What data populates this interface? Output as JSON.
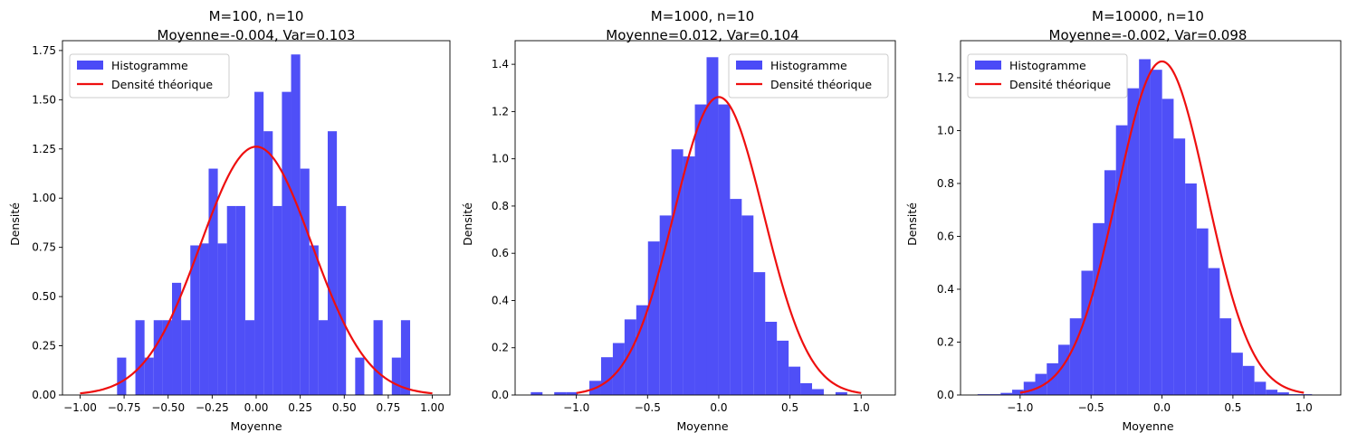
{
  "colors": {
    "hist": "#4b4bf7",
    "curve": "#ee0f0f"
  },
  "chart_data": [
    {
      "type": "bar",
      "title": "M=100, n=10",
      "subtitle": "Moyenne=-0.004, Var=0.103",
      "xlabel": "Moyenne",
      "ylabel": "Densité",
      "xlim": [
        -1.1,
        1.1
      ],
      "ylim": [
        0,
        1.8
      ],
      "xticks": [
        -1.0,
        -0.75,
        -0.5,
        -0.25,
        0.0,
        0.25,
        0.5,
        0.75,
        1.0
      ],
      "xtick_labels": [
        "−1.00",
        "−0.75",
        "−0.50",
        "−0.25",
        "0.00",
        "0.25",
        "0.50",
        "0.75",
        "1.00"
      ],
      "yticks": [
        0,
        0.25,
        0.5,
        0.75,
        1.0,
        1.25,
        1.5,
        1.75
      ],
      "ytick_labels": [
        "0.00",
        "0.25",
        "0.50",
        "0.75",
        "1.00",
        "1.25",
        "1.50",
        "1.75"
      ],
      "legend": {
        "position": "top-left",
        "entries": [
          "Histogramme",
          "Densité théorique"
        ]
      },
      "histogram": {
        "name": "Histogramme",
        "bin_start": -0.79,
        "bin_width": 0.052,
        "values": [
          0.19,
          0,
          0.38,
          0.19,
          0.38,
          0.38,
          0.57,
          0.38,
          0.76,
          0.77,
          1.15,
          0.77,
          0.96,
          0.96,
          0.38,
          1.54,
          1.34,
          0.96,
          1.54,
          1.73,
          1.15,
          0.76,
          0.38,
          1.34,
          0.96,
          0,
          0.19,
          0,
          0.38,
          0,
          0.19,
          0.38
        ]
      },
      "density": {
        "name": "Densité théorique",
        "mean": 0.0,
        "variance": 0.1,
        "x_range": [
          -1.0,
          1.0
        ]
      }
    },
    {
      "type": "bar",
      "title": "M=1000, n=10",
      "subtitle": "Moyenne=0.012, Var=0.104",
      "xlabel": "Moyenne",
      "ylabel": "Densité",
      "xlim": [
        -1.43,
        1.24
      ],
      "ylim": [
        0,
        1.5
      ],
      "xticks": [
        -1.0,
        -0.5,
        0.0,
        0.5,
        1.0
      ],
      "xtick_labels": [
        "−1.0",
        "−0.5",
        "0.0",
        "0.5",
        "1.0"
      ],
      "yticks": [
        0,
        0.2,
        0.4,
        0.6,
        0.8,
        1.0,
        1.2,
        1.4
      ],
      "ytick_labels": [
        "0.0",
        "0.2",
        "0.4",
        "0.6",
        "0.8",
        "1.0",
        "1.2",
        "1.4"
      ],
      "legend": {
        "position": "top-right",
        "entries": [
          "Histogramme",
          "Densité théorique"
        ]
      },
      "histogram": {
        "name": "Histogramme",
        "bin_start": -1.32,
        "bin_width": 0.0823,
        "values": [
          0.012,
          0,
          0.012,
          0.012,
          0,
          0.06,
          0.16,
          0.22,
          0.32,
          0.38,
          0.65,
          0.76,
          1.04,
          1.01,
          1.23,
          1.43,
          1.23,
          0.83,
          0.76,
          0.52,
          0.31,
          0.23,
          0.12,
          0.05,
          0.025,
          0,
          0.012
        ]
      },
      "density": {
        "name": "Densité théorique",
        "mean": 0.0,
        "variance": 0.1,
        "x_range": [
          -1.0,
          1.0
        ]
      }
    },
    {
      "type": "bar",
      "title": "M=10000, n=10",
      "subtitle": "Moyenne=-0.002, Var=0.098",
      "xlabel": "Moyenne",
      "ylabel": "Densité",
      "xlim": [
        -1.42,
        1.26
      ],
      "ylim": [
        0,
        1.34
      ],
      "xticks": [
        -1.0,
        -0.5,
        0.0,
        0.5,
        1.0
      ],
      "xtick_labels": [
        "−1.0",
        "−0.5",
        "0.0",
        "0.5",
        "1.0"
      ],
      "yticks": [
        0,
        0.2,
        0.4,
        0.6,
        0.8,
        1.0,
        1.2
      ],
      "ytick_labels": [
        "0.0",
        "0.2",
        "0.4",
        "0.6",
        "0.8",
        "1.0",
        "1.2"
      ],
      "legend": {
        "position": "top-left",
        "entries": [
          "Histogramme",
          "Densité théorique"
        ]
      },
      "histogram": {
        "name": "Histogramme",
        "bin_start": -1.3,
        "bin_width": 0.0813,
        "values": [
          0.003,
          0.003,
          0.008,
          0.02,
          0.05,
          0.08,
          0.12,
          0.19,
          0.29,
          0.47,
          0.65,
          0.85,
          1.02,
          1.16,
          1.27,
          1.23,
          1.12,
          0.97,
          0.8,
          0.63,
          0.48,
          0.29,
          0.16,
          0.11,
          0.05,
          0.02,
          0.01,
          0.003,
          0.003,
          0.0,
          0.0
        ]
      },
      "density": {
        "name": "Densité théorique",
        "mean": 0.0,
        "variance": 0.1,
        "x_range": [
          -1.0,
          1.0
        ]
      }
    }
  ]
}
